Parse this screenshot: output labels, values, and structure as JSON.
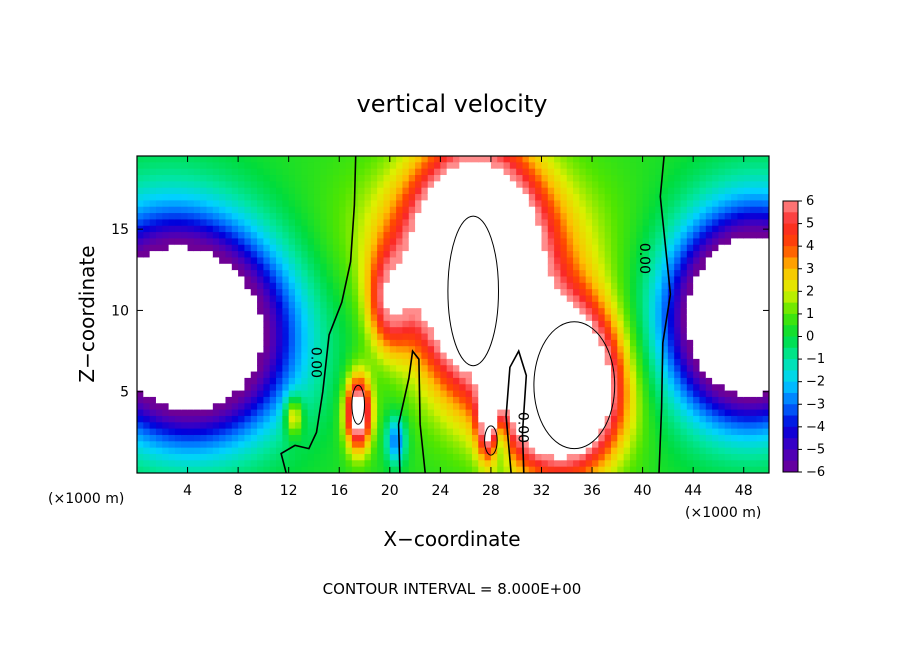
{
  "chart_data": {
    "type": "heatmap",
    "title": "vertical velocity",
    "xlabel": "X−coordinate",
    "ylabel": "Z−coordinate",
    "x_unit": "(×1000 m)",
    "y_unit": "(×1000 m)",
    "footer": "CONTOUR INTERVAL = 8.000E+00",
    "xlim": [
      0,
      50
    ],
    "ylim": [
      0,
      19.5
    ],
    "x_ticks": [
      4,
      8,
      12,
      16,
      20,
      24,
      28,
      32,
      36,
      40,
      44,
      48
    ],
    "x_tick_labels": [
      "4",
      "8",
      "12",
      "16",
      "20",
      "24",
      "28",
      "32",
      "36",
      "40",
      "44",
      "48"
    ],
    "y_ticks": [
      5,
      10,
      15
    ],
    "y_tick_labels": [
      "5",
      "10",
      "15"
    ],
    "colorbar": {
      "range": [
        -6,
        6
      ],
      "ticks": [
        6,
        5,
        4,
        3,
        2,
        1,
        0,
        -1,
        -2,
        -3,
        -4,
        -5,
        -6
      ],
      "tick_labels": [
        "6",
        "5",
        "4",
        "3",
        "2",
        "1",
        "0",
        "−1",
        "−2",
        "−3",
        "−4",
        "−5",
        "−6"
      ]
    },
    "contour_labels": [
      {
        "text": "0.00",
        "x": 39.8,
        "y": 13.2
      },
      {
        "text": "0.00",
        "x": 13.8,
        "y": 6.8
      },
      {
        "text": "0.00",
        "x": 30.2,
        "y": 2.8
      }
    ],
    "regions": [
      {
        "kind": "updraft",
        "x": 26.8,
        "z": 12.5,
        "rx": 4.4,
        "rz": 6.5,
        "w": 14
      },
      {
        "kind": "updraft",
        "x": 33.6,
        "z": 5.6,
        "rx": 4.0,
        "rz": 4.6,
        "w": 14
      },
      {
        "kind": "updraft",
        "x": 17.5,
        "z": 3.7,
        "rx": 1.0,
        "rz": 2.2,
        "w": 8
      },
      {
        "kind": "updraft",
        "x": 28.0,
        "z": 3.2,
        "rx": 0.9,
        "rz": 2.3,
        "w": 7
      },
      {
        "kind": "updraft",
        "x": 20.0,
        "z": 10.5,
        "rx": 1.7,
        "rz": 3.0,
        "w": 4.5
      },
      {
        "kind": "updraft",
        "x": 12.4,
        "z": 3.5,
        "rx": 0.7,
        "rz": 1.2,
        "w": 3.5
      },
      {
        "kind": "downdraft",
        "x": 4.5,
        "z": 8.2,
        "rx": 7.0,
        "rz": 5.6,
        "w": -11
      },
      {
        "kind": "downdraft",
        "x": 48.2,
        "z": 9.2,
        "rx": 5.6,
        "rz": 5.4,
        "w": -11
      },
      {
        "kind": "downdraft",
        "x": 28.6,
        "z": 2.6,
        "rx": 0.8,
        "rz": 2.0,
        "w": -4.8
      },
      {
        "kind": "downdraft",
        "x": 20.5,
        "z": 2.0,
        "rx": 0.8,
        "rz": 1.5,
        "w": -3.5
      }
    ]
  }
}
